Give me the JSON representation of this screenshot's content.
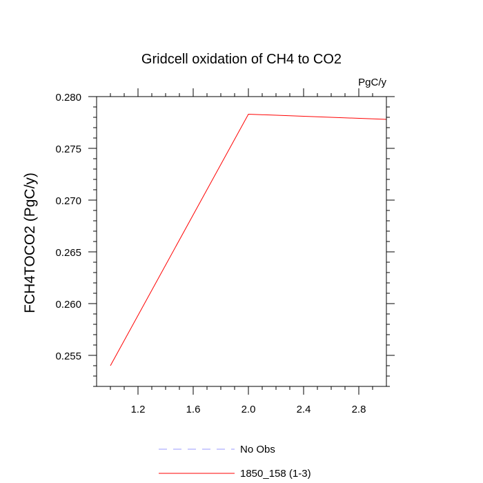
{
  "chart_data": {
    "type": "line",
    "title": "Gridcell oxidation of CH4 to CO2",
    "units_label": "PgC/y",
    "ylabel": "FCH4TOCO2  (PgC/y)",
    "xlabel": "",
    "xlim": [
      0.9,
      3.0
    ],
    "ylim": [
      0.252,
      0.28
    ],
    "x_ticks": [
      1.2,
      1.6,
      2.0,
      2.4,
      2.8
    ],
    "x_tick_labels": [
      "1.2",
      "1.6",
      "2.0",
      "2.4",
      "2.8"
    ],
    "y_ticks": [
      0.255,
      0.26,
      0.265,
      0.27,
      0.275,
      0.28
    ],
    "y_tick_labels": [
      "0.255",
      "0.260",
      "0.265",
      "0.270",
      "0.275",
      "0.280"
    ],
    "series": [
      {
        "name": "1850_158 (1-3)",
        "color": "#ff0000",
        "dash": "solid",
        "x": [
          1.0,
          2.0,
          3.0
        ],
        "y": [
          0.254,
          0.2783,
          0.2778
        ]
      }
    ],
    "legend": [
      {
        "label": "No Obs",
        "color": "#9999ff",
        "dash": "dashed"
      },
      {
        "label": "1850_158 (1-3)",
        "color": "#ff0000",
        "dash": "solid"
      }
    ],
    "legend_position": "bottom-center",
    "grid": false
  }
}
